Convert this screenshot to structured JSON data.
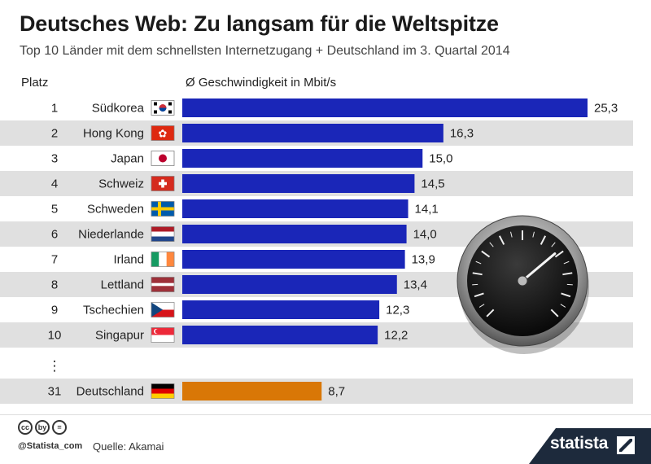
{
  "title": "Deutsches Web: Zu langsam für die Weltspitze",
  "subtitle": "Top 10 Länder mit dem schnellsten Internetzugang + Deutschland im 3. Quartal 2014",
  "column_headers": {
    "rank": "Platz",
    "value": "Ø Geschwindigkeit in Mbit/s"
  },
  "colors": {
    "bar": "#1a26b8",
    "highlight": "#d97706",
    "stripe": "#e0e0e0"
  },
  "ellipsis": "⋮",
  "chart_data": {
    "type": "bar",
    "orientation": "horizontal",
    "title": "Deutsches Web: Zu langsam für die Weltspitze",
    "subtitle": "Top 10 Länder mit dem schnellsten Internetzugang + Deutschland im 3. Quartal 2014",
    "xlabel": "Ø Geschwindigkeit in Mbit/s",
    "xlim": [
      0,
      25.3
    ],
    "decimal_separator": ",",
    "rows": [
      {
        "rank": "1",
        "country": "Südkorea",
        "value": 25.3,
        "label": "25,3",
        "flag": "south-korea"
      },
      {
        "rank": "2",
        "country": "Hong Kong",
        "value": 16.3,
        "label": "16,3",
        "flag": "hong-kong"
      },
      {
        "rank": "3",
        "country": "Japan",
        "value": 15.0,
        "label": "15,0",
        "flag": "japan"
      },
      {
        "rank": "4",
        "country": "Schweiz",
        "value": 14.5,
        "label": "14,5",
        "flag": "switzerland"
      },
      {
        "rank": "5",
        "country": "Schweden",
        "value": 14.1,
        "label": "14,1",
        "flag": "sweden"
      },
      {
        "rank": "6",
        "country": "Niederlande",
        "value": 14.0,
        "label": "14,0",
        "flag": "netherlands"
      },
      {
        "rank": "7",
        "country": "Irland",
        "value": 13.9,
        "label": "13,9",
        "flag": "ireland"
      },
      {
        "rank": "8",
        "country": "Lettland",
        "value": 13.4,
        "label": "13,4",
        "flag": "latvia"
      },
      {
        "rank": "9",
        "country": "Tschechien",
        "value": 12.3,
        "label": "12,3",
        "flag": "czech-republic"
      },
      {
        "rank": "10",
        "country": "Singapur",
        "value": 12.2,
        "label": "12,2",
        "flag": "singapore"
      },
      {
        "rank": "31",
        "country": "Deutschland",
        "value": 8.7,
        "label": "8,7",
        "flag": "germany",
        "highlight": true
      }
    ]
  },
  "footer": {
    "license_icons": [
      "cc",
      "by",
      "="
    ],
    "handle": "@Statista_com",
    "source": "Quelle: Akamai",
    "brand": "statista"
  }
}
